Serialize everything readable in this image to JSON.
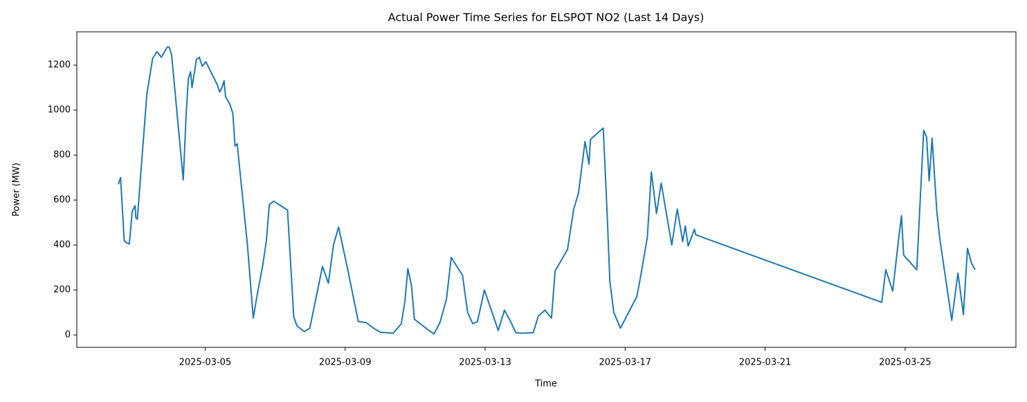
{
  "chart_data": {
    "type": "line",
    "title": "Actual Power Time Series for ELSPOT NO2 (Last 14 Days)",
    "x_label": "Time",
    "y_label": "Power (MW)",
    "color": "#1f77b4",
    "xlim": [
      "2025-03-01 08:00",
      "2025-03-28 04:00"
    ],
    "xticks": [
      "2025-03-05",
      "2025-03-09",
      "2025-03-13",
      "2025-03-17",
      "2025-03-21",
      "2025-03-25"
    ],
    "ylim": [
      -55,
      1348
    ],
    "yticks": [
      0,
      200,
      400,
      600,
      800,
      1000,
      1200
    ],
    "x": [
      "2025-03-02 12:30",
      "2025-03-02 14:00",
      "2025-03-02 16:30",
      "2025-03-02 18:00",
      "2025-03-02 20:00",
      "2025-03-02 22:00",
      "2025-03-03 00:00",
      "2025-03-03 00:30",
      "2025-03-03 01:30",
      "2025-03-03 08:00",
      "2025-03-03 10:00",
      "2025-03-03 12:00",
      "2025-03-03 15:00",
      "2025-03-03 18:00",
      "2025-03-03 22:00",
      "2025-03-03 23:20",
      "2025-03-04 01:00",
      "2025-03-04 09:00",
      "2025-03-04 11:00",
      "2025-03-04 12:30",
      "2025-03-04 14:00",
      "2025-03-04 15:00",
      "2025-03-04 18:00",
      "2025-03-04 20:00",
      "2025-03-04 22:00",
      "2025-03-05 00:30",
      "2025-03-05 08:30",
      "2025-03-05 10:00",
      "2025-03-05 11:30",
      "2025-03-05 13:00",
      "2025-03-05 14:00",
      "2025-03-05 17:00",
      "2025-03-05 19:00",
      "2025-03-05 20:30",
      "2025-03-05 22:00",
      "2025-03-06 00:00",
      "2025-03-06 05:00",
      "2025-03-06 09:00",
      "2025-03-06 12:00",
      "2025-03-06 15:30",
      "2025-03-06 18:00",
      "2025-03-06 20:00",
      "2025-03-06 23:00",
      "2025-03-07 08:30",
      "2025-03-07 12:45",
      "2025-03-07 15:00",
      "2025-03-07 20:00",
      "2025-03-07 23:45",
      "2025-03-08 08:30",
      "2025-03-08 12:30",
      "2025-03-08 16:00",
      "2025-03-08 19:30",
      "2025-03-09 01:30",
      "2025-03-09 09:00",
      "2025-03-09 14:30",
      "2025-03-09 19:30",
      "2025-03-10 00:15",
      "2025-03-10 09:00",
      "2025-03-10 14:30",
      "2025-03-10 17:00",
      "2025-03-10 19:00",
      "2025-03-10 21:30",
      "2025-03-10 23:30",
      "2025-03-11 09:30",
      "2025-03-11 13:00",
      "2025-03-11 17:00",
      "2025-03-11 21:30",
      "2025-03-12 00:45",
      "2025-03-12 08:30",
      "2025-03-12 12:00",
      "2025-03-12 15:30",
      "2025-03-12 18:45",
      "2025-03-12 23:30",
      "2025-03-13 09:00",
      "2025-03-13 13:15",
      "2025-03-13 17:30",
      "2025-03-13 21:00",
      "2025-03-14 00:45",
      "2025-03-14 09:00",
      "2025-03-14 12:30",
      "2025-03-14 17:00",
      "2025-03-14 21:30",
      "2025-03-15 00:00",
      "2025-03-15 08:30",
      "2025-03-15 12:45",
      "2025-03-15 16:00",
      "2025-03-15 20:30",
      "2025-03-15 23:15",
      "2025-03-16 00:15",
      "2025-03-16 09:00",
      "2025-03-16 11:45",
      "2025-03-16 13:30",
      "2025-03-16 16:15",
      "2025-03-16 20:45",
      "2025-03-17 08:00",
      "2025-03-17 10:30",
      "2025-03-17 15:15",
      "2025-03-17 18:00",
      "2025-03-17 21:30",
      "2025-03-18 00:45",
      "2025-03-18 08:00",
      "2025-03-18 11:45",
      "2025-03-18 15:30",
      "2025-03-18 17:15",
      "2025-03-18 19:15",
      "2025-03-18 23:30",
      "2025-03-19 00:30",
      "2025-03-24 08:00",
      "2025-03-24 10:45",
      "2025-03-24 15:30",
      "2025-03-24 19:15",
      "2025-03-24 21:30",
      "2025-03-24 23:00",
      "2025-03-25 08:00",
      "2025-03-25 10:30",
      "2025-03-25 12:45",
      "2025-03-25 14:45",
      "2025-03-25 16:30",
      "2025-03-25 18:30",
      "2025-03-25 21:45",
      "2025-03-25 23:45",
      "2025-03-26 08:00",
      "2025-03-26 12:15",
      "2025-03-26 16:00",
      "2025-03-26 18:45",
      "2025-03-26 21:30",
      "2025-03-27 00:00"
    ],
    "values": [
      670,
      700,
      420,
      410,
      405,
      550,
      575,
      520,
      515,
      1070,
      1150,
      1230,
      1260,
      1235,
      1280,
      1280,
      1245,
      690,
      985,
      1140,
      1170,
      1100,
      1225,
      1235,
      1195,
      1215,
      1110,
      1080,
      1100,
      1130,
      1060,
      1025,
      985,
      840,
      850,
      720,
      400,
      75,
      190,
      310,
      420,
      580,
      595,
      555,
      80,
      40,
      15,
      30,
      305,
      230,
      400,
      480,
      300,
      60,
      55,
      30,
      12,
      8,
      50,
      150,
      295,
      220,
      70,
      20,
      5,
      55,
      160,
      345,
      265,
      100,
      50,
      60,
      200,
      20,
      110,
      60,
      10,
      8,
      10,
      85,
      110,
      75,
      285,
      380,
      560,
      630,
      860,
      760,
      870,
      920,
      530,
      240,
      100,
      30,
      170,
      255,
      435,
      725,
      540,
      675,
      400,
      560,
      415,
      485,
      395,
      470,
      445,
      145,
      290,
      195,
      410,
      530,
      355,
      290,
      620,
      910,
      880,
      685,
      875,
      550,
      430,
      65,
      275,
      90,
      385,
      320,
      290
    ]
  }
}
